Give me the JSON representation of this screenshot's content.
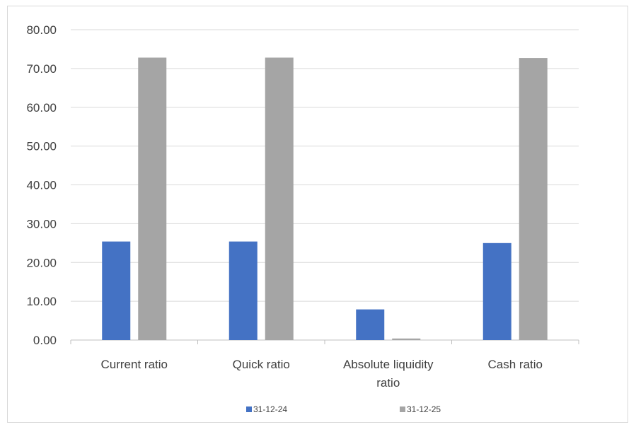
{
  "chart_data": {
    "type": "bar",
    "categories": [
      "Current ratio",
      "Quick ratio",
      "Absolute liquidity ratio",
      "Cash ratio"
    ],
    "category_label_lines": [
      [
        "Current ratio"
      ],
      [
        "Quick ratio"
      ],
      [
        "Absolute liquidity",
        "ratio"
      ],
      [
        "Cash ratio"
      ]
    ],
    "series": [
      {
        "name": "31-12-24",
        "color": "#4472c4",
        "values": [
          25.4,
          25.4,
          7.9,
          25.0
        ]
      },
      {
        "name": "31-12-25",
        "color": "#a5a5a5",
        "values": [
          72.8,
          72.8,
          0.4,
          72.7
        ]
      }
    ],
    "ylim": [
      0,
      80
    ],
    "yticks": [
      "0.00",
      "10.00",
      "20.00",
      "30.00",
      "40.00",
      "50.00",
      "60.00",
      "70.00",
      "80.00"
    ],
    "grid": true,
    "legend_position": "bottom",
    "title": "",
    "xlabel": "",
    "ylabel": ""
  }
}
